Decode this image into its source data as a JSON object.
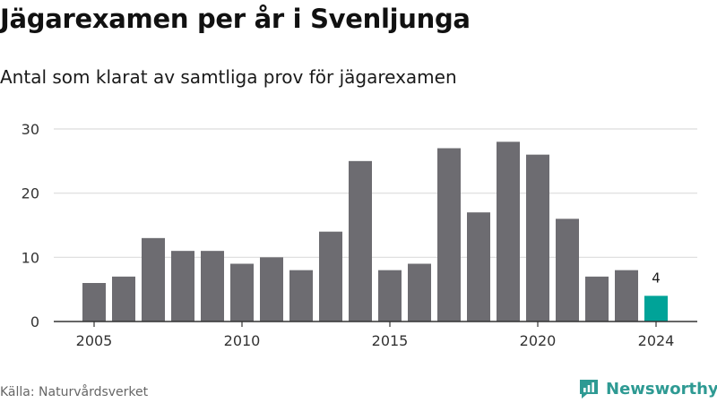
{
  "chart_data": {
    "type": "bar",
    "title": "Jägarexamen per år i Svenljunga",
    "subtitle": "Antal som klarat av samtliga prov för jägarexamen",
    "x": [
      2005,
      2006,
      2007,
      2008,
      2009,
      2010,
      2011,
      2012,
      2013,
      2014,
      2015,
      2016,
      2017,
      2018,
      2019,
      2020,
      2021,
      2022,
      2023,
      2024
    ],
    "values": [
      6,
      7,
      13,
      11,
      11,
      9,
      10,
      8,
      14,
      25,
      8,
      9,
      27,
      17,
      28,
      26,
      16,
      7,
      8,
      4
    ],
    "highlight": {
      "x": 2024,
      "value": 4,
      "label": "4",
      "color": "#00a398"
    },
    "bar_color": "#6d6c71",
    "x_ticks": [
      "2005",
      "2010",
      "2015",
      "2020",
      "2024"
    ],
    "y_ticks": [
      "0",
      "10",
      "20",
      "30"
    ],
    "ylim": [
      0,
      30
    ],
    "grid": true,
    "xlabel": "",
    "ylabel": ""
  },
  "source": "Källa: Naturvårdsverket",
  "brand": {
    "name": "Newsworthy",
    "color": "#2e9a93",
    "icon": "chart-bubble-icon"
  }
}
